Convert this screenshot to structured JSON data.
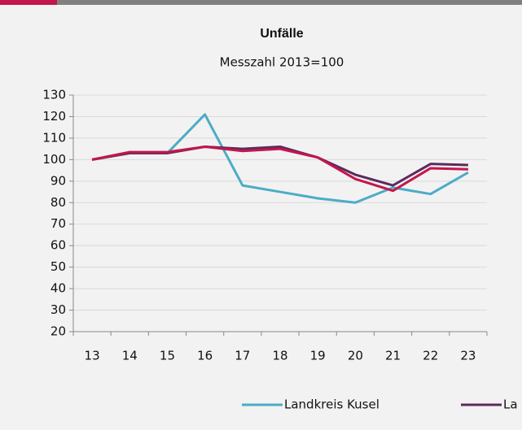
{
  "chart_data": {
    "type": "line",
    "title": "Unfälle",
    "subtitle": "Messzahl 2013=100",
    "categories": [
      "13",
      "14",
      "15",
      "16",
      "17",
      "18",
      "19",
      "20",
      "21",
      "22",
      "23"
    ],
    "series": [
      {
        "name": "Landkreis Kusel",
        "color": "#4bacc6",
        "values": [
          100,
          103,
          103,
          121,
          88,
          85,
          82,
          80,
          87,
          84,
          94
        ]
      },
      {
        "name": "La",
        "color": "#5c2a5e",
        "values": [
          100,
          103,
          103,
          106,
          105,
          106,
          101,
          93,
          88,
          98,
          97.5
        ]
      },
      {
        "color": "#c3164b",
        "values": [
          100,
          103.5,
          103.5,
          106,
          104,
          105,
          101,
          91,
          85.5,
          96,
          95.5
        ]
      }
    ],
    "ylim": [
      20,
      130
    ],
    "yticks": [
      20,
      30,
      40,
      50,
      60,
      70,
      80,
      90,
      100,
      110,
      120,
      130
    ],
    "grid": true
  }
}
